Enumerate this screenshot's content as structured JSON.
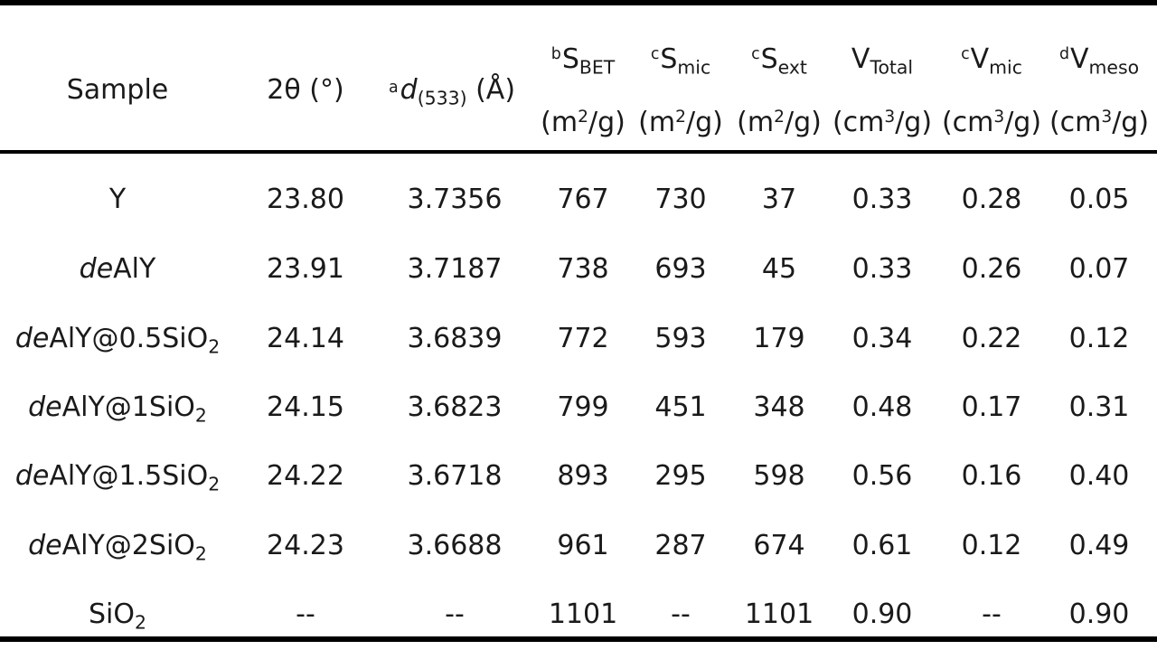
{
  "table": {
    "header": {
      "sample": "Sample",
      "two_theta": "2θ (°)",
      "d533": {
        "marker": "a",
        "symbol": "d",
        "sub": "(533)",
        "unit": "(Å)"
      },
      "sbet": {
        "marker": "b",
        "symbol": "S",
        "sub": "BET",
        "unit_base": "(m",
        "unit_exp": "2",
        "unit_tail": "/g)"
      },
      "smic": {
        "marker": "c",
        "symbol": "S",
        "sub": "mic",
        "unit_base": "(m",
        "unit_exp": "2",
        "unit_tail": "/g)"
      },
      "sext": {
        "marker": "c",
        "symbol": "S",
        "sub": "ext",
        "unit_base": "(m",
        "unit_exp": "2",
        "unit_tail": "/g)"
      },
      "vtotal": {
        "marker": "",
        "symbol": "V",
        "sub": "Total",
        "unit_base": "(cm",
        "unit_exp": "3",
        "unit_tail": "/g)"
      },
      "vmic": {
        "marker": "c",
        "symbol": "V",
        "sub": "mic",
        "unit_base": "(cm",
        "unit_exp": "3",
        "unit_tail": "/g)"
      },
      "vmeso": {
        "marker": "d",
        "symbol": "V",
        "sub": "meso",
        "unit_base": "(cm",
        "unit_exp": "3",
        "unit_tail": "/g)"
      }
    },
    "rows": [
      {
        "sample_italic": "",
        "sample_main": "Y",
        "sample_sub": "",
        "two_theta": "23.80",
        "d533": "3.7356",
        "sbet": "767",
        "smic": "730",
        "sext": "37",
        "vtotal": "0.33",
        "vmic": "0.28",
        "vmeso": "0.05"
      },
      {
        "sample_italic": "de",
        "sample_main": "AlY",
        "sample_sub": "",
        "two_theta": "23.91",
        "d533": "3.7187",
        "sbet": "738",
        "smic": "693",
        "sext": "45",
        "vtotal": "0.33",
        "vmic": "0.26",
        "vmeso": "0.07"
      },
      {
        "sample_italic": "de",
        "sample_main": "AlY@0.5SiO",
        "sample_sub": "2",
        "two_theta": "24.14",
        "d533": "3.6839",
        "sbet": "772",
        "smic": "593",
        "sext": "179",
        "vtotal": "0.34",
        "vmic": "0.22",
        "vmeso": "0.12"
      },
      {
        "sample_italic": "de",
        "sample_main": "AlY@1SiO",
        "sample_sub": "2",
        "two_theta": "24.15",
        "d533": "3.6823",
        "sbet": "799",
        "smic": "451",
        "sext": "348",
        "vtotal": "0.48",
        "vmic": "0.17",
        "vmeso": "0.31"
      },
      {
        "sample_italic": "de",
        "sample_main": "AlY@1.5SiO",
        "sample_sub": "2",
        "two_theta": "24.22",
        "d533": "3.6718",
        "sbet": "893",
        "smic": "295",
        "sext": "598",
        "vtotal": "0.56",
        "vmic": "0.16",
        "vmeso": "0.40"
      },
      {
        "sample_italic": "de",
        "sample_main": "AlY@2SiO",
        "sample_sub": "2",
        "two_theta": "24.23",
        "d533": "3.6688",
        "sbet": "961",
        "smic": "287",
        "sext": "674",
        "vtotal": "0.61",
        "vmic": "0.12",
        "vmeso": "0.49"
      },
      {
        "sample_italic": "",
        "sample_main": "SiO",
        "sample_sub": "2",
        "two_theta": "--",
        "d533": "--",
        "sbet": "1101",
        "smic": "--",
        "sext": "1101",
        "vtotal": "0.90",
        "vmic": "--",
        "vmeso": "0.90"
      }
    ]
  }
}
